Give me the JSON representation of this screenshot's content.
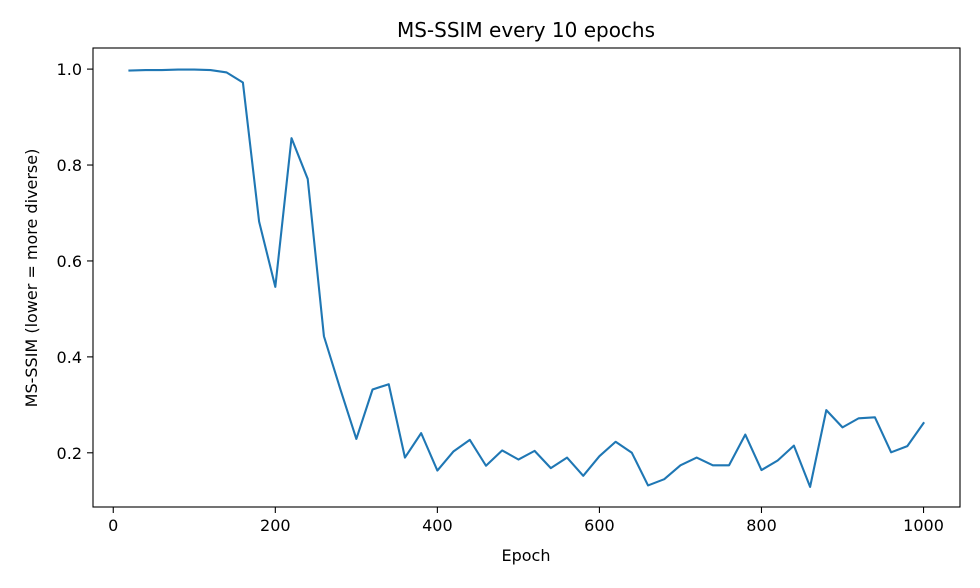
{
  "chart_data": {
    "type": "line",
    "title": "MS-SSIM every 10 epochs",
    "xlabel": "Epoch",
    "ylabel": "MS-SSIM (lower = more diverse)",
    "xlim": [
      -25,
      1045
    ],
    "ylim": [
      0.087,
      1.044
    ],
    "xticks": [
      0,
      200,
      400,
      600,
      800,
      1000
    ],
    "xtick_labels": [
      "0",
      "200",
      "400",
      "600",
      "800",
      "1000"
    ],
    "yticks": [
      0.2,
      0.4,
      0.6,
      0.8,
      1.0
    ],
    "ytick_labels": [
      "0.2",
      "0.4",
      "0.6",
      "0.8",
      "1.0"
    ],
    "grid": false,
    "series": [
      {
        "color": "#1f77b4",
        "x": [
          20,
          40,
          60,
          80,
          100,
          120,
          140,
          160,
          180,
          200,
          220,
          240,
          260,
          280,
          300,
          320,
          340,
          360,
          380,
          400,
          420,
          440,
          460,
          480,
          500,
          520,
          540,
          560,
          580,
          600,
          620,
          640,
          660,
          680,
          700,
          720,
          740,
          760,
          780,
          800,
          820,
          840,
          860,
          880,
          900,
          920,
          940,
          960,
          980,
          1000
        ],
        "y": [
          0.997,
          0.998,
          0.998,
          0.999,
          0.999,
          0.998,
          0.993,
          0.972,
          0.682,
          0.546,
          0.856,
          0.771,
          0.443,
          0.334,
          0.229,
          0.332,
          0.343,
          0.19,
          0.241,
          0.163,
          0.203,
          0.227,
          0.173,
          0.205,
          0.186,
          0.204,
          0.168,
          0.19,
          0.152,
          0.193,
          0.223,
          0.2,
          0.132,
          0.145,
          0.174,
          0.19,
          0.174,
          0.174,
          0.238,
          0.164,
          0.184,
          0.215,
          0.129,
          0.289,
          0.253,
          0.272,
          0.274,
          0.201,
          0.214,
          0.262
        ]
      }
    ]
  }
}
